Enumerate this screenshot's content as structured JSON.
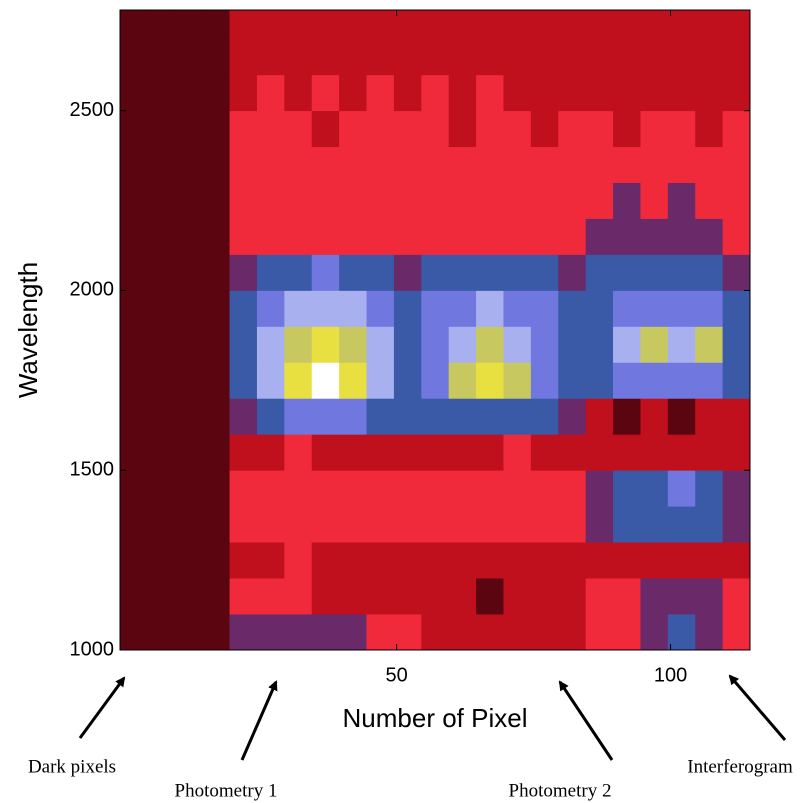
{
  "chart_data": {
    "type": "heatmap",
    "xlabel": "Number of Pixel",
    "ylabel": "Wavelength",
    "xbins": [
      -0.5,
      4.5,
      9.5,
      14.5,
      19.5,
      24.5,
      29.5,
      34.5,
      39.5,
      44.5,
      49.5,
      54.5,
      59.5,
      64.5,
      69.5,
      74.5,
      79.5,
      84.5,
      89.5,
      94.5,
      99.5,
      104.5,
      109.5,
      114.5
    ],
    "ybins": [
      1000,
      1100,
      1200,
      1300,
      1400,
      1500,
      1600,
      1700,
      1800,
      1900,
      2000,
      2100,
      2200,
      2300,
      2400,
      2500,
      2600,
      2700,
      2780
    ],
    "xlim": [
      -0.5,
      114.5
    ],
    "ylim": [
      1000,
      2780
    ],
    "xticks": [
      50,
      100
    ],
    "yticks": [
      1000,
      1500,
      2000,
      2500
    ],
    "colorscale": [
      "#000000",
      "#5a0510",
      "#c0101e",
      "#f02a3a",
      "#6a2a6a",
      "#3a5aa8",
      "#7078e0",
      "#a8b0f0",
      "#c8c860",
      "#e8e040",
      "#ffffff"
    ],
    "z": [
      [
        1,
        1,
        1,
        1,
        4,
        4,
        4,
        4,
        4,
        3,
        3,
        2,
        2,
        2,
        2,
        2,
        2,
        3,
        3,
        4,
        5,
        4,
        3
      ],
      [
        1,
        1,
        1,
        1,
        3,
        3,
        3,
        2,
        2,
        2,
        2,
        2,
        2,
        1,
        2,
        2,
        2,
        3,
        3,
        4,
        4,
        4,
        3
      ],
      [
        1,
        1,
        1,
        1,
        2,
        2,
        3,
        2,
        2,
        2,
        2,
        2,
        2,
        2,
        2,
        2,
        2,
        2,
        2,
        2,
        2,
        2,
        2
      ],
      [
        1,
        1,
        1,
        1,
        3,
        3,
        3,
        3,
        3,
        3,
        3,
        3,
        3,
        3,
        3,
        3,
        3,
        4,
        5,
        5,
        5,
        5,
        4
      ],
      [
        1,
        1,
        1,
        1,
        3,
        3,
        3,
        3,
        3,
        3,
        3,
        3,
        3,
        3,
        3,
        3,
        3,
        4,
        5,
        5,
        6,
        5,
        4
      ],
      [
        1,
        1,
        1,
        1,
        2,
        2,
        3,
        2,
        2,
        2,
        2,
        2,
        2,
        2,
        3,
        2,
        2,
        2,
        2,
        2,
        2,
        2,
        2
      ],
      [
        1,
        1,
        1,
        1,
        4,
        5,
        6,
        6,
        6,
        5,
        5,
        5,
        5,
        5,
        5,
        5,
        4,
        2,
        1,
        2,
        1,
        2,
        2
      ],
      [
        1,
        1,
        1,
        1,
        5,
        7,
        9,
        10,
        9,
        7,
        5,
        6,
        8,
        9,
        8,
        6,
        5,
        5,
        6,
        6,
        6,
        6,
        5
      ],
      [
        1,
        1,
        1,
        1,
        5,
        7,
        8,
        9,
        8,
        7,
        5,
        6,
        7,
        8,
        7,
        6,
        5,
        5,
        7,
        8,
        7,
        8,
        5
      ],
      [
        1,
        1,
        1,
        1,
        5,
        6,
        7,
        7,
        7,
        6,
        5,
        6,
        6,
        7,
        6,
        6,
        5,
        5,
        6,
        6,
        6,
        6,
        5
      ],
      [
        1,
        1,
        1,
        1,
        4,
        5,
        5,
        6,
        5,
        5,
        4,
        5,
        5,
        5,
        5,
        5,
        4,
        5,
        5,
        5,
        5,
        5,
        4
      ],
      [
        1,
        1,
        1,
        1,
        3,
        3,
        3,
        3,
        3,
        3,
        3,
        3,
        3,
        3,
        3,
        3,
        3,
        4,
        4,
        4,
        4,
        4,
        3
      ],
      [
        1,
        1,
        1,
        1,
        3,
        3,
        3,
        3,
        3,
        3,
        3,
        3,
        3,
        3,
        3,
        3,
        3,
        3,
        4,
        3,
        4,
        3,
        3
      ],
      [
        1,
        1,
        1,
        1,
        3,
        3,
        3,
        3,
        3,
        3,
        3,
        3,
        3,
        3,
        3,
        3,
        3,
        3,
        3,
        3,
        3,
        3,
        3
      ],
      [
        1,
        1,
        1,
        1,
        3,
        3,
        3,
        2,
        3,
        3,
        3,
        3,
        2,
        3,
        3,
        2,
        3,
        3,
        2,
        3,
        3,
        2,
        3
      ],
      [
        1,
        1,
        1,
        1,
        2,
        3,
        2,
        3,
        2,
        3,
        2,
        3,
        2,
        3,
        2,
        2,
        2,
        2,
        2,
        2,
        2,
        2,
        2
      ],
      [
        1,
        1,
        1,
        1,
        2,
        2,
        2,
        2,
        2,
        2,
        2,
        2,
        2,
        2,
        2,
        2,
        2,
        2,
        2,
        2,
        2,
        2,
        2
      ],
      [
        1,
        1,
        1,
        1,
        2,
        2,
        2,
        2,
        2,
        2,
        2,
        2,
        2,
        2,
        2,
        2,
        2,
        2,
        2,
        2,
        2,
        2,
        2
      ]
    ],
    "annotations": [
      {
        "text": "Dark pixels"
      },
      {
        "text": "Photometry 1"
      },
      {
        "text": "Photometry 2"
      },
      {
        "text": "Interferogram"
      }
    ]
  }
}
